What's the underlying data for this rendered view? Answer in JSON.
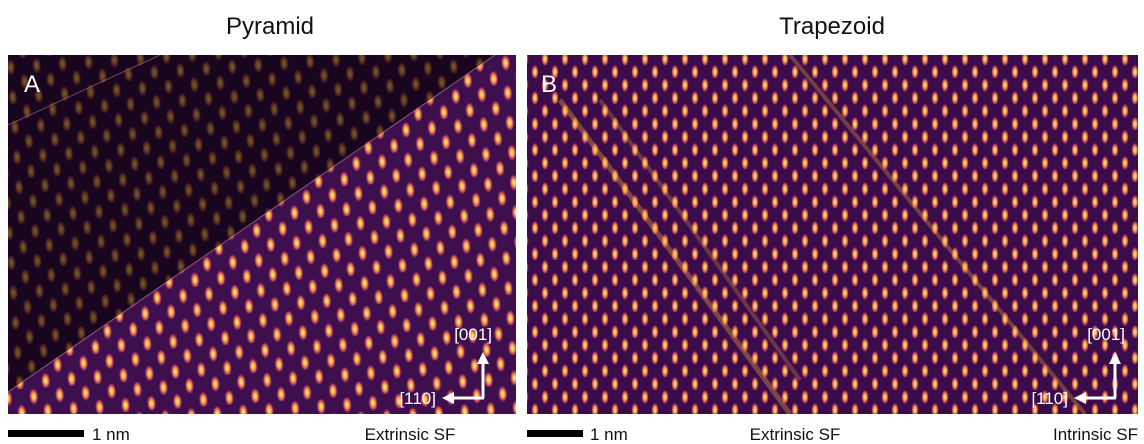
{
  "panels": [
    {
      "title": "Pyramid",
      "label": "A",
      "directions": [
        "[001]",
        "[110]"
      ],
      "scale_bar": "1 nm",
      "annotations": [
        "Extrinsic SF"
      ]
    },
    {
      "title": "Trapezoid",
      "label": "B",
      "directions": [
        "[001]",
        "[110]"
      ],
      "scale_bar": "1 nm",
      "annotations": [
        "Extrinsic SF",
        "Intrinsic SF"
      ]
    }
  ]
}
